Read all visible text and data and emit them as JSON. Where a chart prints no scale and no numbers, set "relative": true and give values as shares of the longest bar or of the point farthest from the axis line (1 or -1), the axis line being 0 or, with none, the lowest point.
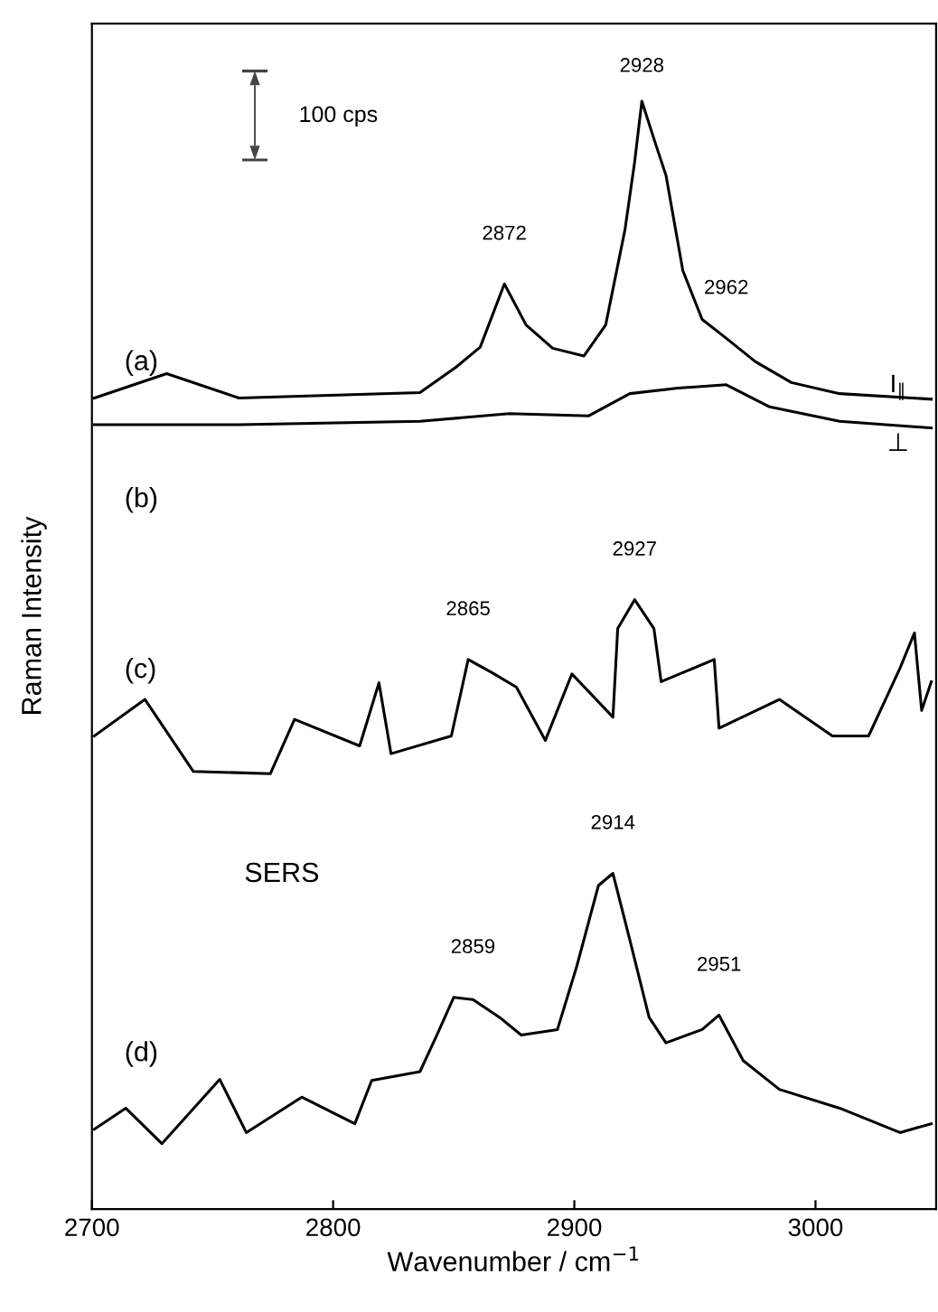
{
  "chart_data": {
    "type": "line",
    "relative": true,
    "xlabel": "Wavenumber / cm$^{−1}$",
    "ylabel": "Raman Intensity",
    "xlim": [
      2700,
      3050
    ],
    "xticks": [
      2700,
      2800,
      2900,
      3000
    ],
    "tick_labels": "x",
    "grid": false,
    "legend": false,
    "marker": "none",
    "line_style": "solid",
    "series": [
      {
        "name": "(a)",
        "color": "#000000",
        "x": [
          2701,
          2731,
          2761,
          2836,
          2851,
          2861,
          2871,
          2880,
          2891,
          2904,
          2913,
          2921,
          2925,
          2928,
          2933,
          2938,
          2945,
          2953,
          2963,
          2975,
          2990,
          3010,
          3048
        ],
        "values": [
          0.732,
          0.754,
          0.732,
          0.737,
          0.76,
          0.778,
          0.835,
          0.798,
          0.777,
          0.77,
          0.798,
          0.884,
          0.945,
          1,
          0.966,
          0.933,
          0.847,
          0.803,
          0.786,
          0.765,
          0.746,
          0.736,
          0.731
        ]
      },
      {
        "name": "(b)",
        "color": "#000000",
        "x": [
          2701,
          2761,
          2836,
          2873,
          2906,
          2923,
          2943,
          2963,
          2981,
          3010,
          3048
        ],
        "values": [
          0.708,
          0.708,
          0.711,
          0.718,
          0.716,
          0.736,
          0.741,
          0.744,
          0.724,
          0.711,
          0.705
        ]
      },
      {
        "name": "(c)",
        "color": "#000000",
        "x": [
          2701,
          2722,
          2742,
          2774,
          2784,
          2811,
          2819,
          2824,
          2849,
          2856,
          2866,
          2876,
          2888,
          2899,
          2916,
          2918,
          2925,
          2933,
          2936,
          2958,
          2960,
          2985,
          3007,
          3022,
          3035,
          3041,
          3044,
          3048
        ],
        "values": [
          0.427,
          0.46,
          0.395,
          0.393,
          0.442,
          0.418,
          0.475,
          0.411,
          0.427,
          0.496,
          0.484,
          0.471,
          0.423,
          0.483,
          0.444,
          0.524,
          0.55,
          0.524,
          0.476,
          0.496,
          0.434,
          0.46,
          0.427,
          0.427,
          0.488,
          0.52,
          0.45,
          0.476
        ]
      },
      {
        "name": "(d)",
        "color": "#000000",
        "x": [
          2701,
          2714,
          2729,
          2753,
          2764,
          2787,
          2809,
          2816,
          2836,
          2843,
          2850,
          2858,
          2869,
          2878,
          2893,
          2901,
          2910,
          2916,
          2923,
          2931,
          2938,
          2953,
          2960,
          2970,
          2985,
          3010,
          3035,
          3048
        ],
        "values": [
          0.072,
          0.091,
          0.059,
          0.117,
          0.069,
          0.101,
          0.077,
          0.116,
          0.124,
          0.157,
          0.191,
          0.189,
          0.173,
          0.157,
          0.162,
          0.219,
          0.292,
          0.303,
          0.243,
          0.173,
          0.15,
          0.162,
          0.175,
          0.134,
          0.108,
          0.091,
          0.069,
          0.077
        ]
      }
    ],
    "annotations": [
      {
        "text": "2928",
        "x": 2928,
        "y": 1
      },
      {
        "text": "2872",
        "x": 2871,
        "y": 0.835
      },
      {
        "text": "2962",
        "x": 2963,
        "y": 0.786
      },
      {
        "text": "2865",
        "x": 2856,
        "y": 0.496
      },
      {
        "text": "2927",
        "x": 2925,
        "y": 0.55
      },
      {
        "text": "2914",
        "x": 2916,
        "y": 0.303
      },
      {
        "text": "2859",
        "x": 2858,
        "y": 0.191
      },
      {
        "text": "2951",
        "x": 2960,
        "y": 0.175
      },
      "100 cps",
      "I$_{∥}$",
      "⊥",
      "SERS"
    ]
  }
}
